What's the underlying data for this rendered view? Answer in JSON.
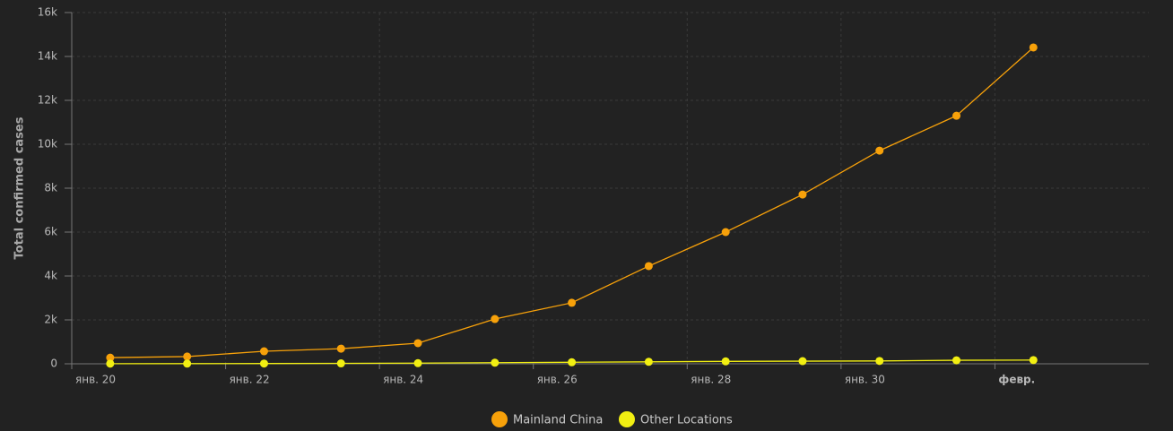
{
  "chart_data": {
    "type": "line",
    "y_label": "Total confirmed cases",
    "x": [
      20.5,
      21.5,
      22.5,
      23.5,
      24.5,
      25.5,
      26.5,
      27.5,
      28.5,
      29.5,
      30.5,
      31.5,
      32.5
    ],
    "series": [
      {
        "name": "Mainland China",
        "color": "#f7a10a",
        "values": [
          280,
          330,
          570,
          690,
          940,
          2040,
          2780,
          4450,
          6000,
          7710,
          9710,
          11300,
          14410
        ]
      },
      {
        "name": "Other Locations",
        "color": "#f2ef12",
        "values": [
          6,
          8,
          12,
          20,
          30,
          50,
          70,
          90,
          110,
          120,
          130,
          160,
          170
        ]
      }
    ],
    "xlim": [
      20,
      34
    ],
    "xticks": [
      {
        "value": 20,
        "label": "янв. 20"
      },
      {
        "value": 22,
        "label": "янв. 22"
      },
      {
        "value": 24,
        "label": "янв. 24"
      },
      {
        "value": 26,
        "label": "янв. 26"
      },
      {
        "value": 28,
        "label": "янв. 28"
      },
      {
        "value": 30,
        "label": "янв. 30"
      },
      {
        "value": 32,
        "label": "февр."
      }
    ],
    "ylim": [
      0,
      16000
    ],
    "yticks": [
      0,
      {
        "value": 2000,
        "label": "2k"
      },
      {
        "value": 4000,
        "label": "4k"
      },
      {
        "value": 6000,
        "label": "6k"
      },
      {
        "value": 8000,
        "label": "8k"
      },
      {
        "value": 10000,
        "label": "10k"
      },
      {
        "value": 12000,
        "label": "12k"
      },
      {
        "value": 14000,
        "label": "14k"
      },
      {
        "value": 16000,
        "label": "16k"
      }
    ],
    "grid": true
  }
}
